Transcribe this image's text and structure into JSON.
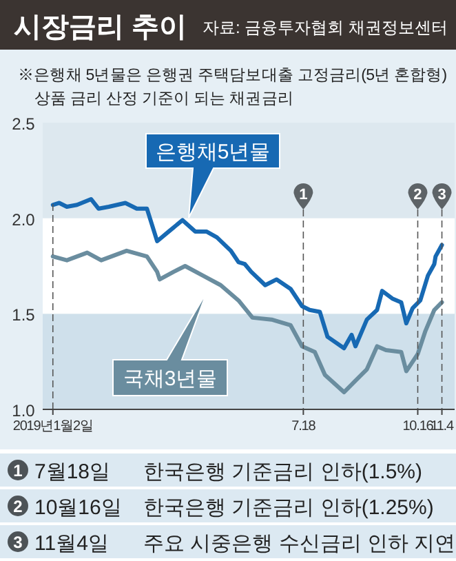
{
  "chart_data": {
    "type": "line",
    "title": "시장금리 추이",
    "annotations": [
      "자료: 금융투자협회 채권정보센터",
      "※은행채 5년물은 은행권 주택담보대출 고정금리(5년 혼합형) 상품 금리 산정 기준이 되는 채권금리",
      "1",
      "7월18일",
      "한국은행 기준금리 인하(1.5%)",
      "2",
      "10월16일",
      "한국은행 기준금리 인하(1.25%)",
      "3",
      "11월4일",
      "주요 시중은행 수신금리 인하 지연"
    ],
    "xlim": [
      "2018-12-25",
      "2019-11-14"
    ],
    "xticks": [
      {
        "value": "2019-01-02",
        "label": "2019년1월2일"
      },
      {
        "value": "2019-07-18",
        "label": "7.18"
      },
      {
        "value": "2019-10-16",
        "label": "10.16"
      },
      {
        "value": "2019-11-04",
        "label": "11.4"
      }
    ],
    "ylim": [
      1.0,
      2.5
    ],
    "yticks": [
      {
        "value": 1.0,
        "label": "1.0"
      },
      {
        "value": 1.5,
        "label": "1.5"
      },
      {
        "value": 2.0,
        "label": "2.0"
      },
      {
        "value": 2.5,
        "label": "2.5"
      }
    ],
    "ref_lines": [
      {
        "axis": "x",
        "value": "2019-01-02",
        "label": null,
        "color": "#555555",
        "line_style": "dashed"
      },
      {
        "axis": "x",
        "value": "2019-07-18",
        "label": "1",
        "color": "#555555",
        "line_style": "dashed"
      },
      {
        "axis": "x",
        "value": "2019-10-16",
        "label": "2",
        "color": "#555555",
        "line_style": "dashed"
      },
      {
        "axis": "x",
        "value": "2019-11-04",
        "label": "3",
        "color": "#555555",
        "line_style": "dashed"
      }
    ],
    "bands": [
      {
        "axis": "y",
        "from": 2.0,
        "to": 2.5,
        "color": "#dde8ef"
      },
      {
        "axis": "y",
        "from": 1.0,
        "to": 1.5,
        "color": "#cfe0eb"
      }
    ],
    "series": [
      {
        "name": "은행채5년물",
        "color": "#1769b3",
        "x": [
          "2019-01-02",
          "2019-01-07",
          "2019-01-13",
          "2019-01-21",
          "2019-02-01",
          "2019-02-07",
          "2019-02-15",
          "2019-02-28",
          "2019-03-09",
          "2019-03-17",
          "2019-03-25",
          "2019-04-03",
          "2019-04-14",
          "2019-04-24",
          "2019-05-03",
          "2019-05-11",
          "2019-05-22",
          "2019-05-28",
          "2019-06-02",
          "2019-06-07",
          "2019-06-18",
          "2019-06-27",
          "2019-07-08",
          "2019-07-17",
          "2019-07-23",
          "2019-07-31",
          "2019-08-06",
          "2019-08-19",
          "2019-08-25",
          "2019-08-28",
          "2019-09-06",
          "2019-09-14",
          "2019-09-18",
          "2019-09-26",
          "2019-10-03",
          "2019-10-07",
          "2019-10-12",
          "2019-10-18",
          "2019-10-24",
          "2019-10-29",
          "2019-10-30",
          "2019-11-04"
        ],
        "values": [
          2.07,
          2.08,
          2.06,
          2.07,
          2.1,
          2.05,
          2.06,
          2.08,
          2.05,
          2.05,
          1.88,
          1.93,
          1.99,
          1.93,
          1.93,
          1.9,
          1.83,
          1.77,
          1.76,
          1.72,
          1.65,
          1.68,
          1.63,
          1.54,
          1.52,
          1.51,
          1.38,
          1.32,
          1.39,
          1.33,
          1.47,
          1.52,
          1.62,
          1.58,
          1.56,
          1.45,
          1.53,
          1.57,
          1.7,
          1.76,
          1.8,
          1.86
        ]
      },
      {
        "name": "국채3년물",
        "color": "#6a8d9f",
        "x": [
          "2019-01-02",
          "2019-01-13",
          "2019-01-29",
          "2019-02-09",
          "2019-03-01",
          "2019-03-17",
          "2019-03-25",
          "2019-03-27",
          "2019-04-07",
          "2019-04-16",
          "2019-04-30",
          "2019-05-14",
          "2019-05-28",
          "2019-06-08",
          "2019-06-23",
          "2019-07-08",
          "2019-07-17",
          "2019-07-27",
          "2019-08-04",
          "2019-08-19",
          "2019-08-28",
          "2019-09-06",
          "2019-09-14",
          "2019-09-21",
          "2019-10-03",
          "2019-10-07",
          "2019-10-16",
          "2019-10-22",
          "2019-10-29",
          "2019-11-04"
        ],
        "values": [
          1.8,
          1.78,
          1.82,
          1.78,
          1.83,
          1.8,
          1.72,
          1.68,
          1.72,
          1.75,
          1.7,
          1.65,
          1.57,
          1.48,
          1.47,
          1.44,
          1.33,
          1.3,
          1.18,
          1.09,
          1.15,
          1.21,
          1.33,
          1.31,
          1.3,
          1.2,
          1.29,
          1.41,
          1.52,
          1.56
        ]
      }
    ]
  }
}
